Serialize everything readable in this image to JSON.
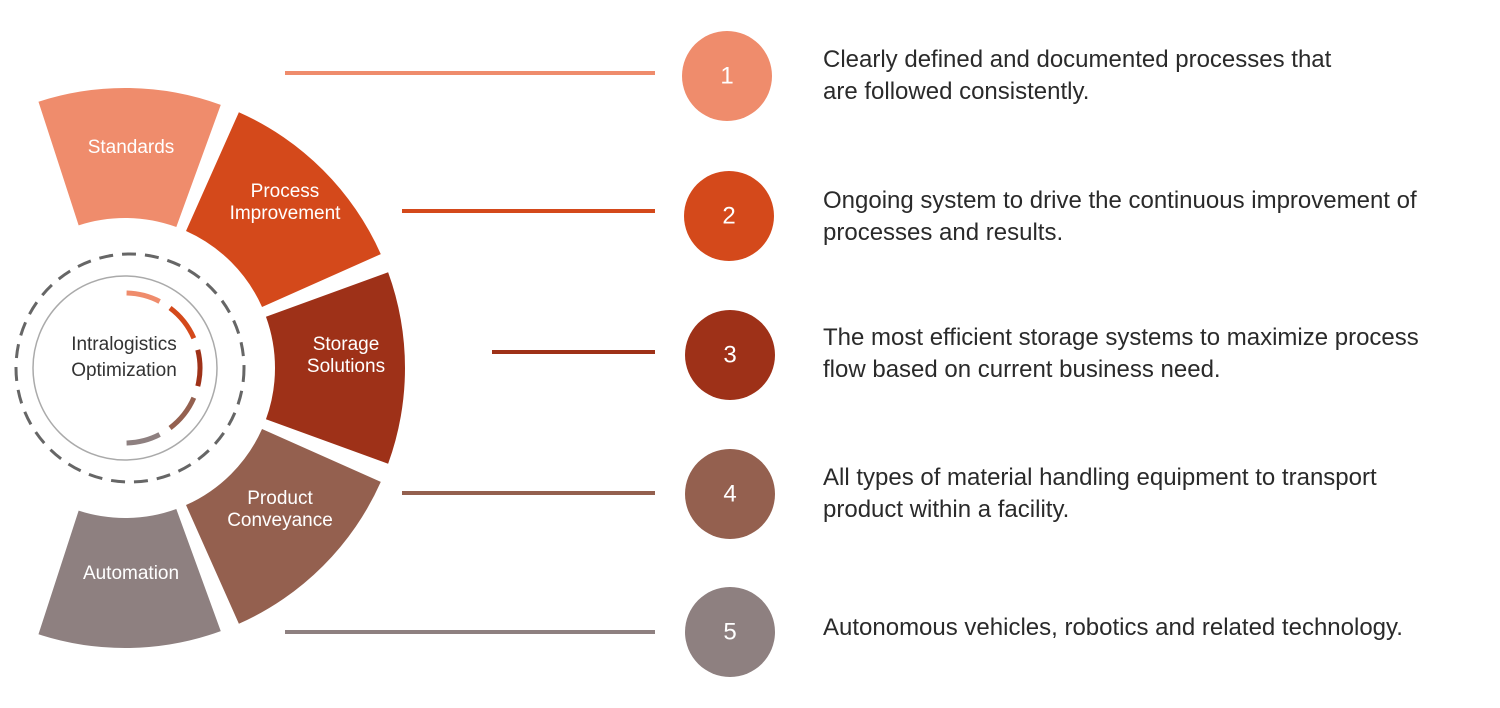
{
  "center": {
    "line1": "Intralogistics",
    "line2": "Optimization"
  },
  "items": [
    {
      "number": "1",
      "segment": [
        "Standards"
      ],
      "color": "#EF8C6C",
      "description": [
        "Clearly defined and documented processes that",
        "are followed consistently."
      ]
    },
    {
      "number": "2",
      "segment": [
        "Process",
        "Improvement"
      ],
      "color": "#D4491B",
      "description": [
        "Ongoing system to drive the continuous improvement of",
        "processes and results."
      ]
    },
    {
      "number": "3",
      "segment": [
        "Storage",
        "Solutions"
      ],
      "color": "#9E3118",
      "description": [
        "The most efficient storage systems to maximize process",
        "flow based on current business need."
      ]
    },
    {
      "number": "4",
      "segment": [
        "Product",
        "Conveyance"
      ],
      "color": "#94604F",
      "description": [
        "All types of material handling equipment to transport",
        "product within a facility."
      ]
    },
    {
      "number": "5",
      "segment": [
        "Automation"
      ],
      "color": "#8E8080",
      "description": [
        "Autonomous vehicles, robotics and related technology."
      ]
    }
  ]
}
